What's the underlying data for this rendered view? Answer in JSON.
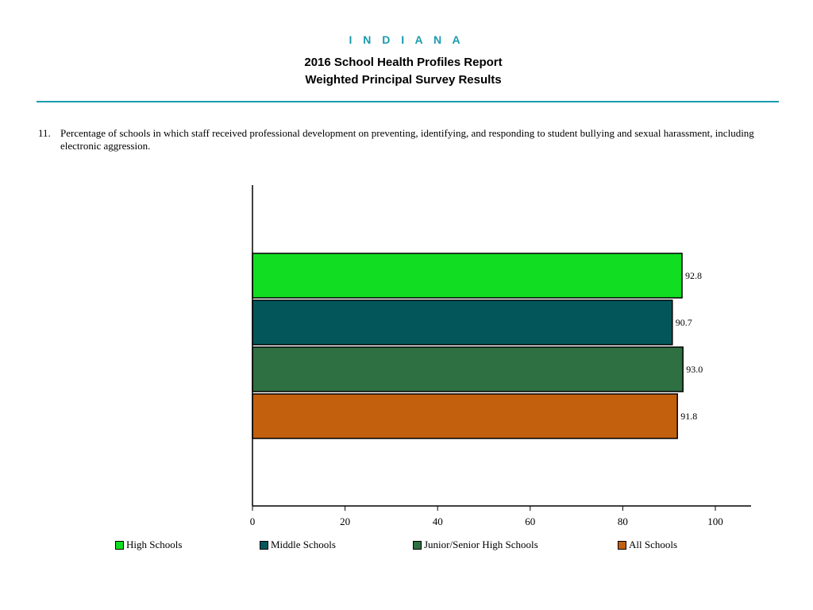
{
  "header": {
    "state": "I N D I A N A",
    "title_line1": "2016 School Health Profiles Report",
    "title_line2": "Weighted Principal Survey Results"
  },
  "question": {
    "number": "11.",
    "text": "Percentage of schools in which staff received professional development on preventing, identifying, and responding to student bullying and sexual harassment, including electronic aggression."
  },
  "chart_data": {
    "type": "bar",
    "orientation": "horizontal",
    "series": [
      {
        "name": "High Schools",
        "value": 92.8,
        "label": "92.8",
        "color": "#11dd22"
      },
      {
        "name": "Middle Schools",
        "value": 90.7,
        "label": "90.7",
        "color": "#03575a"
      },
      {
        "name": "Junior/Senior High Schools",
        "value": 93.0,
        "label": "93.0",
        "color": "#2e7042"
      },
      {
        "name": "All Schools",
        "value": 91.8,
        "label": "91.8",
        "color": "#c2600e"
      }
    ],
    "xlim": [
      0,
      100
    ],
    "xticks": [
      "0",
      "20",
      "40",
      "60",
      "80",
      "100"
    ],
    "grid": false,
    "legend_position": "bottom"
  },
  "legend": {
    "items": [
      {
        "label": "High Schools",
        "color": "#11dd22"
      },
      {
        "label": "Middle Schools",
        "color": "#03575a"
      },
      {
        "label": "Junior/Senior High Schools",
        "color": "#2e7042"
      },
      {
        "label": "All Schools",
        "color": "#c2600e"
      }
    ]
  }
}
